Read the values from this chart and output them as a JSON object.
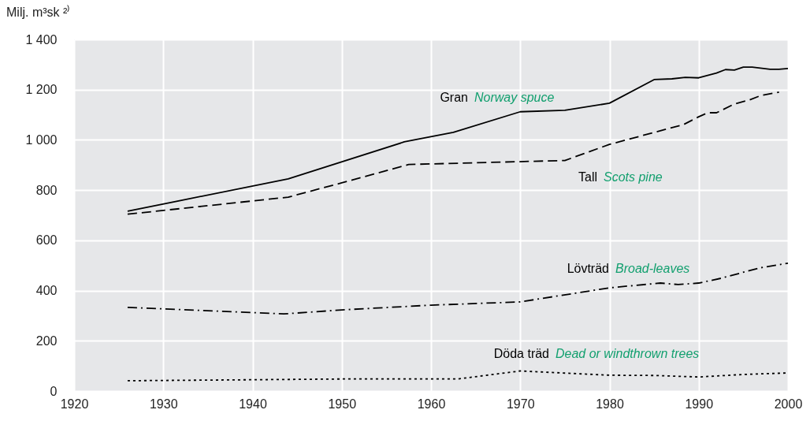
{
  "chart_data": {
    "type": "line",
    "ylabel": "Milj. m³sk ²⁾",
    "xlim": [
      1920,
      2000
    ],
    "xticks": [
      1920,
      1930,
      1940,
      1950,
      1960,
      1970,
      1980,
      1990,
      2000
    ],
    "ylim": [
      0,
      1400
    ],
    "yticks": [
      0,
      200,
      400,
      600,
      800,
      {
        "value": 1000,
        "label": "1 000"
      },
      {
        "value": 1200,
        "label": "1 200"
      },
      {
        "value": 1400,
        "label": "1 400"
      }
    ],
    "grid": true,
    "legend": false,
    "series": [
      {
        "name": "Gran",
        "color": "#000000",
        "line_style": "solid",
        "x": [
          1926,
          1944,
          1957,
          1962.5,
          1970,
          1975,
          1980,
          1985,
          1987,
          1988.5,
          1990,
          1992,
          1993,
          1994,
          1995,
          1996,
          1998,
          1999,
          2000
        ],
        "values": [
          716,
          845,
          992,
          1030,
          1112,
          1118,
          1146,
          1240,
          1243,
          1249,
          1247,
          1266,
          1280,
          1278,
          1290,
          1290,
          1281,
          1281,
          1284
        ]
      },
      {
        "name": "Tall",
        "color": "#000000",
        "line_style": "dashed",
        "x": [
          1926,
          1944,
          1950,
          1957.5,
          1975,
          1980,
          1988.3,
          1990,
          1991,
          1992,
          1994,
          1995.6,
          1997,
          1999
        ],
        "values": [
          704,
          772,
          829,
          902,
          918,
          982,
          1061,
          1092,
          1108,
          1108,
          1143,
          1158,
          1177,
          1190
        ]
      },
      {
        "name": "Lövträd",
        "color": "#000000",
        "line_style": "dashdot",
        "x": [
          1926,
          1943.5,
          1950,
          1960,
          1970,
          1980,
          1985.7,
          1987.7,
          1990,
          1992.5,
          1996.8,
          2000
        ],
        "values": [
          333,
          307,
          323,
          342,
          355,
          411,
          430,
          424,
          430,
          449,
          490,
          509
        ]
      },
      {
        "name": "Döda träd",
        "color": "#000000",
        "line_style": "dotted",
        "x": [
          1926,
          1940,
          1950,
          1963,
          1970,
          1980,
          1985,
          1990,
          1995,
          2000
        ],
        "values": [
          41,
          45,
          48,
          48,
          80,
          63,
          62,
          56,
          66,
          72
        ]
      }
    ],
    "annotations": [
      "Norway spuce",
      "Scots pine",
      "Broad-leaves",
      "Dead or windthrown trees"
    ]
  }
}
